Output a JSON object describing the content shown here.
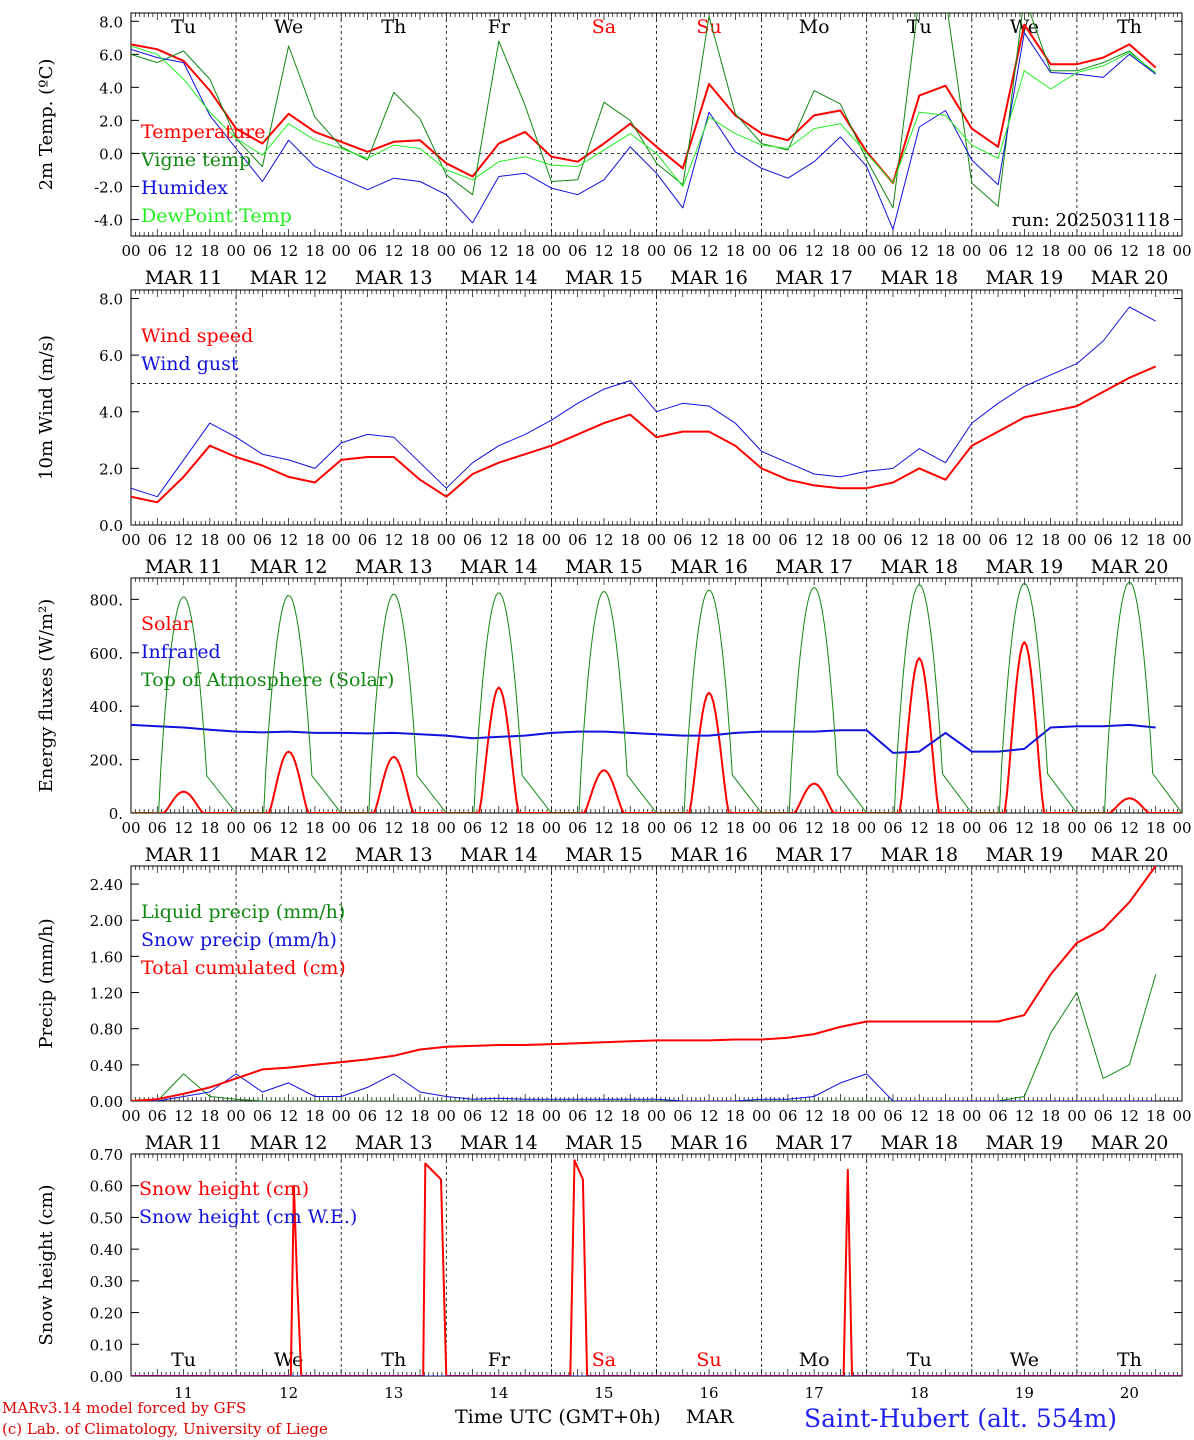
{
  "footer": {
    "model": "MARv3.14 model forced by GFS",
    "lab": "(c) Lab. of Climatology, University of Liege",
    "xlabel": "Time UTC (GMT+0h)",
    "month": "MAR",
    "station": "Saint-Hubert (alt. 554m)",
    "model_color": "#dd0000",
    "station_color": "#2222ee"
  },
  "chart_data": [
    {
      "type": "line",
      "id": "temp",
      "ylabel": "2m Temp. (ºC)",
      "ylim": [
        -5,
        8.5
      ],
      "yticks": [
        "-4.0",
        "-2.0",
        "0.0",
        "2.0",
        "4.0",
        "6.0",
        "8.0"
      ],
      "ref_line": 0,
      "run_label": "run: 2025031118",
      "day_names_top": [
        "Tu",
        "We",
        "Th",
        "Fr",
        "Sa",
        "Su",
        "Mo",
        "Tu",
        "We",
        "Th"
      ],
      "x_start": "2025-03-11T00",
      "x_step_hours": 6,
      "series": [
        {
          "name": "Temperature",
          "color": "#ff0000",
          "width": 2,
          "values": [
            6.6,
            6.3,
            5.6,
            3.8,
            1.5,
            0.6,
            2.4,
            1.3,
            0.7,
            0.1,
            0.7,
            0.8,
            -0.6,
            -1.4,
            0.6,
            1.3,
            -0.2,
            -0.5,
            0.6,
            1.8,
            0.4,
            -0.9,
            4.2,
            2.3,
            1.2,
            0.8,
            2.3,
            2.6,
            0.1,
            -1.8,
            3.5,
            4.1,
            1.5,
            0.4,
            7.8,
            5.4,
            5.4,
            5.8,
            6.6,
            5.2
          ]
        },
        {
          "name": "Vigne temp",
          "color": "#118811",
          "width": 1,
          "values": [
            6.0,
            5.5,
            6.2,
            4.5,
            0.9,
            -0.8,
            6.5,
            2.2,
            0.4,
            -0.4,
            3.7,
            2.1,
            -1.3,
            -2.5,
            6.8,
            2.9,
            -1.7,
            -1.6,
            3.1,
            2.0,
            -0.6,
            -1.9,
            8.3,
            2.4,
            0.6,
            0.2,
            3.8,
            3.0,
            -0.4,
            -3.3,
            9.5,
            9.5,
            -1.8,
            -3.2,
            9.5,
            5.0,
            5.0,
            5.5,
            6.2,
            4.8
          ]
        },
        {
          "name": "Humidex",
          "color": "#1111dd",
          "width": 1,
          "values": [
            6.3,
            5.8,
            5.5,
            2.3,
            0.3,
            -1.7,
            0.8,
            -0.8,
            -1.5,
            -2.2,
            -1.5,
            -1.7,
            -2.5,
            -4.2,
            -1.4,
            -1.2,
            -2.1,
            -2.5,
            -1.6,
            0.4,
            -1.2,
            -3.3,
            2.5,
            0.1,
            -0.9,
            -1.5,
            -0.5,
            1.0,
            -0.8,
            -4.6,
            1.6,
            2.6,
            -0.4,
            -1.9,
            7.3,
            4.9,
            4.8,
            4.6,
            6.0,
            4.8
          ]
        },
        {
          "name": "DewPoint Temp",
          "color": "#22ee22",
          "width": 1,
          "values": [
            6.5,
            6.0,
            4.5,
            2.5,
            0.9,
            -0.1,
            1.8,
            0.8,
            0.3,
            -0.3,
            0.5,
            0.3,
            -1.0,
            -1.6,
            -0.5,
            -0.2,
            -0.7,
            -0.8,
            0.2,
            1.2,
            0.0,
            -2.0,
            2.2,
            1.2,
            0.5,
            0.3,
            1.5,
            1.8,
            0.0,
            -1.8,
            2.5,
            2.3,
            0.5,
            -0.3,
            5.0,
            3.9,
            4.9,
            5.3,
            6.1,
            4.9
          ]
        }
      ]
    },
    {
      "type": "line",
      "id": "wind",
      "ylabel": "10m Wind (m/s)",
      "ylim": [
        0,
        8.3
      ],
      "yticks": [
        "0.0",
        "2.0",
        "4.0",
        "6.0",
        "8.0"
      ],
      "ref_line": 5,
      "x_start": "2025-03-11T00",
      "x_step_hours": 6,
      "series": [
        {
          "name": "Wind speed",
          "color": "#ff0000",
          "width": 2,
          "values": [
            1.0,
            0.8,
            1.7,
            2.8,
            2.4,
            2.1,
            1.7,
            1.5,
            2.3,
            2.4,
            2.4,
            1.6,
            1.0,
            1.8,
            2.2,
            2.5,
            2.8,
            3.2,
            3.6,
            3.9,
            3.1,
            3.3,
            3.3,
            2.8,
            2.0,
            1.6,
            1.4,
            1.3,
            1.3,
            1.5,
            2.0,
            1.6,
            2.8,
            3.3,
            3.8,
            4.0,
            4.2,
            4.7,
            5.2,
            5.6
          ]
        },
        {
          "name": "Wind gust",
          "color": "#1111dd",
          "width": 1,
          "values": [
            1.3,
            1.0,
            2.3,
            3.6,
            3.1,
            2.5,
            2.3,
            2.0,
            2.9,
            3.2,
            3.1,
            2.2,
            1.3,
            2.2,
            2.8,
            3.2,
            3.7,
            4.3,
            4.8,
            5.1,
            4.0,
            4.3,
            4.2,
            3.6,
            2.6,
            2.2,
            1.8,
            1.7,
            1.9,
            2.0,
            2.7,
            2.2,
            3.6,
            4.3,
            4.9,
            5.3,
            5.7,
            6.5,
            7.7,
            7.2
          ]
        }
      ]
    },
    {
      "type": "line",
      "id": "energy",
      "ylabel": "Energy fluxes (W/m²)",
      "ylim": [
        0,
        880
      ],
      "yticks": [
        "0.",
        "200.",
        "400.",
        "600.",
        "800."
      ],
      "x_start": "2025-03-11T00",
      "x_step_hours": 6,
      "series": [
        {
          "name": "Solar",
          "color": "#ff0000",
          "width": 2,
          "day_peaks": [
            80,
            230,
            210,
            470,
            160,
            450,
            110,
            580,
            640,
            55
          ]
        },
        {
          "name": "Infrared",
          "color": "#1111dd",
          "width": 2,
          "values": [
            330,
            325,
            320,
            312,
            305,
            302,
            305,
            300,
            300,
            298,
            300,
            295,
            290,
            280,
            285,
            290,
            300,
            305,
            305,
            300,
            295,
            290,
            290,
            300,
            305,
            305,
            305,
            310,
            310,
            225,
            230,
            300,
            230,
            230,
            240,
            320,
            325,
            325,
            330,
            320
          ]
        },
        {
          "name": "Top of Atmosphere (Solar)",
          "color": "#118811",
          "width": 1,
          "day_peaks": [
            810,
            815,
            820,
            825,
            830,
            835,
            845,
            855,
            860,
            865
          ]
        }
      ]
    },
    {
      "type": "line",
      "id": "precip",
      "ylabel": "Precip (mm/h)",
      "ylim": [
        0,
        2.6
      ],
      "yticks": [
        "0.00",
        "0.40",
        "0.80",
        "1.20",
        "1.60",
        "2.00",
        "2.40"
      ],
      "x_start": "2025-03-11T00",
      "x_step_hours": 6,
      "series": [
        {
          "name": "Liquid precip (mm/h)",
          "color": "#118811",
          "width": 1,
          "values": [
            0,
            0,
            0.3,
            0.05,
            0.02,
            0,
            0,
            0,
            0,
            0,
            0,
            0,
            0,
            0,
            0,
            0,
            0,
            0,
            0,
            0,
            0,
            0,
            0,
            0,
            0,
            0,
            0,
            0,
            0,
            0,
            0,
            0,
            0,
            0,
            0.05,
            0.75,
            1.2,
            0.25,
            0.4,
            1.4
          ]
        },
        {
          "name": "Snow precip (mm/h)",
          "color": "#1111dd",
          "width": 1,
          "values": [
            0,
            0,
            0.05,
            0.1,
            0.3,
            0.1,
            0.2,
            0.05,
            0.05,
            0.15,
            0.3,
            0.1,
            0.05,
            0.02,
            0.03,
            0.02,
            0.02,
            0.02,
            0.02,
            0.02,
            0.02,
            0,
            0,
            0,
            0.02,
            0.02,
            0.05,
            0.2,
            0.3,
            0,
            0,
            0,
            0,
            0,
            0,
            0,
            0,
            0,
            0,
            0
          ]
        },
        {
          "name": "Total cumulated (cm)",
          "color": "#ff0000",
          "width": 2,
          "values": [
            0,
            0.02,
            0.08,
            0.15,
            0.25,
            0.35,
            0.37,
            0.4,
            0.43,
            0.46,
            0.5,
            0.57,
            0.6,
            0.61,
            0.62,
            0.62,
            0.63,
            0.64,
            0.65,
            0.66,
            0.67,
            0.67,
            0.67,
            0.68,
            0.68,
            0.7,
            0.74,
            0.82,
            0.88,
            0.88,
            0.88,
            0.88,
            0.88,
            0.88,
            0.95,
            1.4,
            1.75,
            1.9,
            2.2,
            2.6
          ]
        }
      ]
    },
    {
      "type": "line",
      "id": "snow",
      "ylabel": "Snow height (cm)",
      "ylim": [
        0,
        0.7
      ],
      "yticks": [
        "0.00",
        "0.10",
        "0.20",
        "0.30",
        "0.40",
        "0.50",
        "0.60",
        "0.70"
      ],
      "x_start": "2025-03-11T00",
      "x_step_hours": 6,
      "day_names_bottom": [
        "Tu",
        "We",
        "Th",
        "Fr",
        "Sa",
        "Su",
        "Mo",
        "Tu",
        "We",
        "Th"
      ],
      "x_day_labels": [
        "11",
        "12",
        "13",
        "14",
        "15",
        "16",
        "17",
        "18",
        "19",
        "20"
      ],
      "series": [
        {
          "name": "Snow height (cm)",
          "color": "#ff0000",
          "width": 2,
          "events": [
            [
              1.52,
              0
            ],
            [
              1.55,
              0.6
            ],
            [
              1.58,
              0.3
            ],
            [
              1.62,
              0
            ],
            [
              2.78,
              0
            ],
            [
              2.8,
              0.67
            ],
            [
              2.95,
              0.62
            ],
            [
              3.0,
              0
            ],
            [
              4.18,
              0
            ],
            [
              4.22,
              0.68
            ],
            [
              4.3,
              0.62
            ],
            [
              4.34,
              0
            ],
            [
              6.78,
              0
            ],
            [
              6.82,
              0.65
            ],
            [
              6.86,
              0
            ]
          ]
        },
        {
          "name": "Snow height (cm W.E.)",
          "color": "#1111dd",
          "width": 1,
          "values": [
            0,
            0
          ]
        }
      ]
    }
  ],
  "axes": {
    "hour_labels": [
      "00",
      "06",
      "12",
      "18"
    ],
    "final_hour_label": "00",
    "date_labels": [
      "MAR 11",
      "MAR 12",
      "MAR 13",
      "MAR 14",
      "MAR 15",
      "MAR 16",
      "MAR 17",
      "MAR 18",
      "MAR 19",
      "MAR 20"
    ],
    "weekend_color": "#ff0000",
    "weekend_days": [
      4,
      5
    ]
  }
}
